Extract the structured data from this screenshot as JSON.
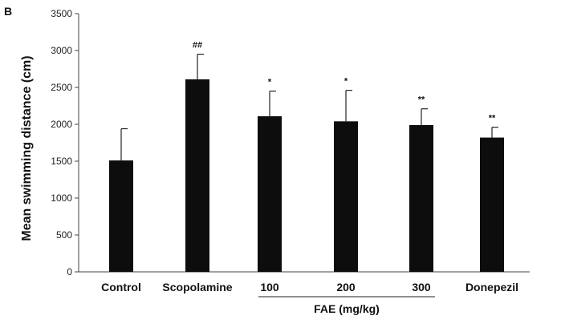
{
  "chart_data": {
    "type": "bar",
    "panel_label": "B",
    "ylabel": "Mean swimming distance (cm)",
    "xlabel": "",
    "ylim": [
      0,
      3500
    ],
    "yticks": [
      "0",
      "500",
      "1000",
      "1500",
      "2000",
      "2500",
      "3000",
      "3500"
    ],
    "grid": false,
    "categories": [
      "Control",
      "Scopolamine",
      "100",
      "200",
      "300",
      "Donepezil"
    ],
    "values": [
      1510,
      2610,
      2110,
      2040,
      1990,
      1820
    ],
    "error": [
      430,
      340,
      340,
      420,
      220,
      140
    ],
    "annotations": [
      "",
      "##",
      "*",
      "*",
      "**",
      "**"
    ],
    "group": {
      "label": "FAE (mg/kg)",
      "categories": [
        "100",
        "200",
        "300"
      ]
    },
    "colors": {
      "bar": "#0d0d0d",
      "axis": "#444444"
    }
  }
}
